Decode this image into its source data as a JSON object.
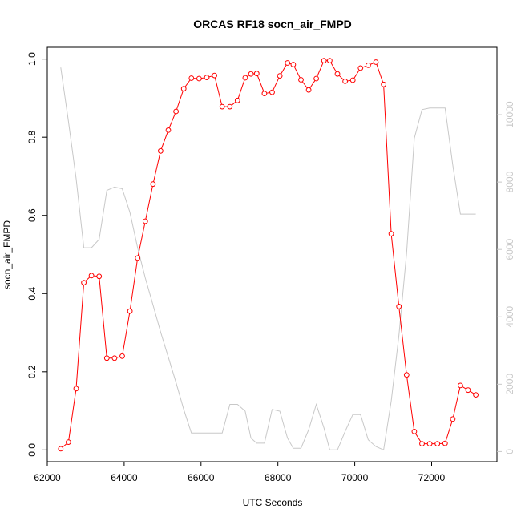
{
  "chart_data": {
    "type": "line",
    "title": "ORCAS RF18 socn_air_FMPD",
    "xlabel": "UTC Seconds",
    "ylabel": "socn_air_FMPD",
    "xlim": [
      62000,
      73700
    ],
    "ylim": [
      -0.03,
      1.03
    ],
    "y2lim": [
      -300,
      12000
    ],
    "x_ticks": [
      62000,
      64000,
      66000,
      68000,
      70000,
      72000
    ],
    "y_ticks": [
      0.0,
      0.2,
      0.4,
      0.6,
      0.8,
      1.0
    ],
    "y2_ticks": [
      0,
      2000,
      4000,
      6000,
      8000,
      10000
    ],
    "x_tick_labels": [
      "62000",
      "64000",
      "66000",
      "68000",
      "70000",
      "72000"
    ],
    "y_tick_labels": [
      "0.0",
      "0.2",
      "0.4",
      "0.6",
      "0.8",
      "1.0"
    ],
    "y2_tick_labels": [
      "0",
      "2000",
      "4000",
      "6000",
      "8000",
      "10000"
    ],
    "grid": false,
    "series": [
      {
        "color": "#ff0000",
        "style": "line+open-circle",
        "axis": "left",
        "x": [
          62350,
          62550,
          62750,
          62950,
          63150,
          63350,
          63550,
          63750,
          63950,
          64150,
          64350,
          64550,
          64750,
          64950,
          65150,
          65350,
          65550,
          65750,
          65950,
          66150,
          66350,
          66550,
          66750,
          66950,
          67150,
          67300,
          67450,
          67650,
          67850,
          68050,
          68250,
          68400,
          68600,
          68800,
          69000,
          69200,
          69350,
          69550,
          69750,
          69950,
          70150,
          70350,
          70550,
          70750,
          70950,
          71150,
          71350,
          71550,
          71750,
          71950,
          72150,
          72350,
          72550,
          72750,
          72950,
          73150
        ],
        "y": [
          0.003,
          0.02,
          0.157,
          0.428,
          0.446,
          0.444,
          0.235,
          0.235,
          0.24,
          0.355,
          0.491,
          0.585,
          0.68,
          0.765,
          0.818,
          0.866,
          0.924,
          0.951,
          0.95,
          0.953,
          0.958,
          0.878,
          0.878,
          0.894,
          0.952,
          0.962,
          0.963,
          0.912,
          0.915,
          0.957,
          0.99,
          0.986,
          0.947,
          0.921,
          0.95,
          0.996,
          0.996,
          0.962,
          0.943,
          0.946,
          0.977,
          0.984,
          0.992,
          0.935,
          0.553,
          0.367,
          0.192,
          0.047,
          0.016,
          0.016,
          0.016,
          0.017,
          0.079,
          0.165,
          0.153,
          0.141
        ]
      },
      {
        "color": "#c8c8c8",
        "style": "line",
        "axis": "right",
        "x": [
          62350,
          62550,
          62750,
          62950,
          63150,
          63350,
          63550,
          63750,
          63950,
          64150,
          64350,
          64550,
          64750,
          64950,
          65150,
          65350,
          65550,
          65750,
          65950,
          66150,
          66350,
          66550,
          66750,
          66950,
          67150,
          67300,
          67450,
          67650,
          67850,
          68050,
          68250,
          68400,
          68600,
          68800,
          69000,
          69200,
          69350,
          69550,
          69750,
          69950,
          70150,
          70350,
          70550,
          70750,
          70950,
          71150,
          71350,
          71550,
          71750,
          71950,
          72150,
          72350,
          72550,
          72750,
          72950,
          73150
        ],
        "y": [
          11400,
          9800,
          8100,
          6050,
          6050,
          6300,
          7750,
          7850,
          7800,
          7100,
          6050,
          5150,
          4350,
          3550,
          2800,
          2050,
          1250,
          550,
          550,
          550,
          550,
          550,
          1400,
          1400,
          1200,
          400,
          250,
          250,
          1250,
          1200,
          400,
          100,
          100,
          650,
          1400,
          700,
          50,
          50,
          600,
          1100,
          1100,
          350,
          150,
          50,
          1500,
          3450,
          5900,
          9300,
          10150,
          10200,
          10200,
          10200,
          8500,
          7050,
          7050,
          7050
        ]
      }
    ]
  }
}
